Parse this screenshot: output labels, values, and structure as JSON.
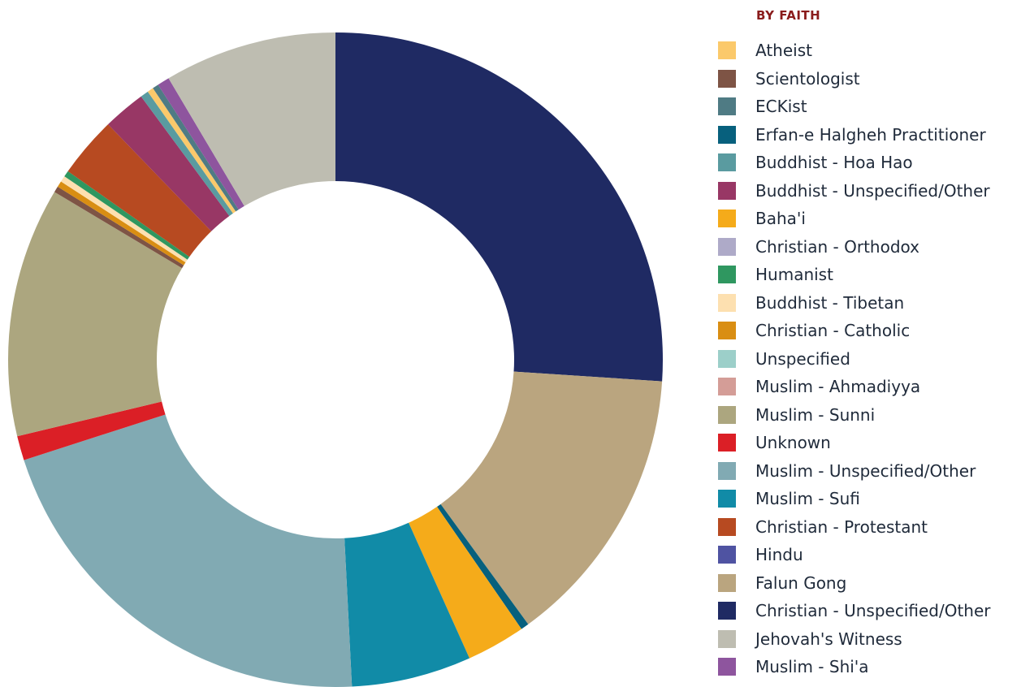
{
  "chart_data": {
    "type": "pie",
    "legend_title": "BY FAITH",
    "legend_position": "right",
    "legend": [
      {
        "label": "Atheist",
        "color": "#fbc96b"
      },
      {
        "label": "Scientologist",
        "color": "#7e5445"
      },
      {
        "label": "ECKist",
        "color": "#4f7b84"
      },
      {
        "label": "Erfan-e Halgheh Practitioner",
        "color": "#07607d"
      },
      {
        "label": "Buddhist - Hoa Hao",
        "color": "#5a9ba0"
      },
      {
        "label": "Buddhist - Unspecified/Other",
        "color": "#983765"
      },
      {
        "label": "Baha'i",
        "color": "#f5ab1a"
      },
      {
        "label": "Christian - Orthodox",
        "color": "#aeaac8"
      },
      {
        "label": "Humanist",
        "color": "#2f9760"
      },
      {
        "label": "Buddhist - Tibetan",
        "color": "#fde0b0"
      },
      {
        "label": "Christian - Catholic",
        "color": "#d98e13"
      },
      {
        "label": "Unspecified",
        "color": "#9ccfc9"
      },
      {
        "label": "Muslim - Ahmadiyya",
        "color": "#d49d97"
      },
      {
        "label": "Muslim - Sunni",
        "color": "#aca67f"
      },
      {
        "label": "Unknown",
        "color": "#db1f26"
      },
      {
        "label": "Muslim - Unspecified/Other",
        "color": "#81aab3"
      },
      {
        "label": "Muslim - Sufi",
        "color": "#118ba7"
      },
      {
        "label": "Christian - Protestant",
        "color": "#b74a21"
      },
      {
        "label": "Hindu",
        "color": "#4f53a2"
      },
      {
        "label": "Falun Gong",
        "color": "#baa57f"
      },
      {
        "label": "Christian - Unspecified/Other",
        "color": "#1f2a63"
      },
      {
        "label": "Jehovah's Witness",
        "color": "#bebdb1"
      },
      {
        "label": "Muslim - Shi'a",
        "color": "#8e559e"
      }
    ],
    "slices": [
      {
        "label": "Christian - Unspecified/Other",
        "value": 26.0,
        "color": "#1f2a63"
      },
      {
        "label": "Falun Gong",
        "value": 13.9,
        "color": "#baa57f"
      },
      {
        "label": "Erfan-e Halgheh Practitioner",
        "value": 0.4,
        "color": "#07607d"
      },
      {
        "label": "Baha'i",
        "value": 2.9,
        "color": "#f5ab1a"
      },
      {
        "label": "Muslim - Sufi",
        "value": 5.9,
        "color": "#118ba7"
      },
      {
        "label": "Muslim - Unspecified/Other",
        "value": 20.8,
        "color": "#81aab3"
      },
      {
        "label": "Unknown",
        "value": 1.2,
        "color": "#db1f26"
      },
      {
        "label": "Muslim - Sunni",
        "value": 12.3,
        "color": "#aca67f"
      },
      {
        "label": "Scientologist",
        "value": 0.3,
        "color": "#7e5445"
      },
      {
        "label": "Christian - Catholic",
        "value": 0.3,
        "color": "#d98e13"
      },
      {
        "label": "Buddhist - Tibetan",
        "value": 0.3,
        "color": "#fde0b0"
      },
      {
        "label": "Humanist",
        "value": 0.3,
        "color": "#2f9760"
      },
      {
        "label": "Christian - Protestant",
        "value": 3.0,
        "color": "#b74a21"
      },
      {
        "label": "Buddhist - Unspecified/Other",
        "value": 2.1,
        "color": "#983765"
      },
      {
        "label": "Buddhist - Hoa Hao",
        "value": 0.4,
        "color": "#5a9ba0"
      },
      {
        "label": "Atheist",
        "value": 0.3,
        "color": "#fbc96b"
      },
      {
        "label": "ECKist",
        "value": 0.3,
        "color": "#4f7b84"
      },
      {
        "label": "Muslim - Shi'a",
        "value": 0.6,
        "color": "#8e559e"
      },
      {
        "label": "Jehovah's Witness",
        "value": 8.5,
        "color": "#bebdb1"
      }
    ]
  }
}
